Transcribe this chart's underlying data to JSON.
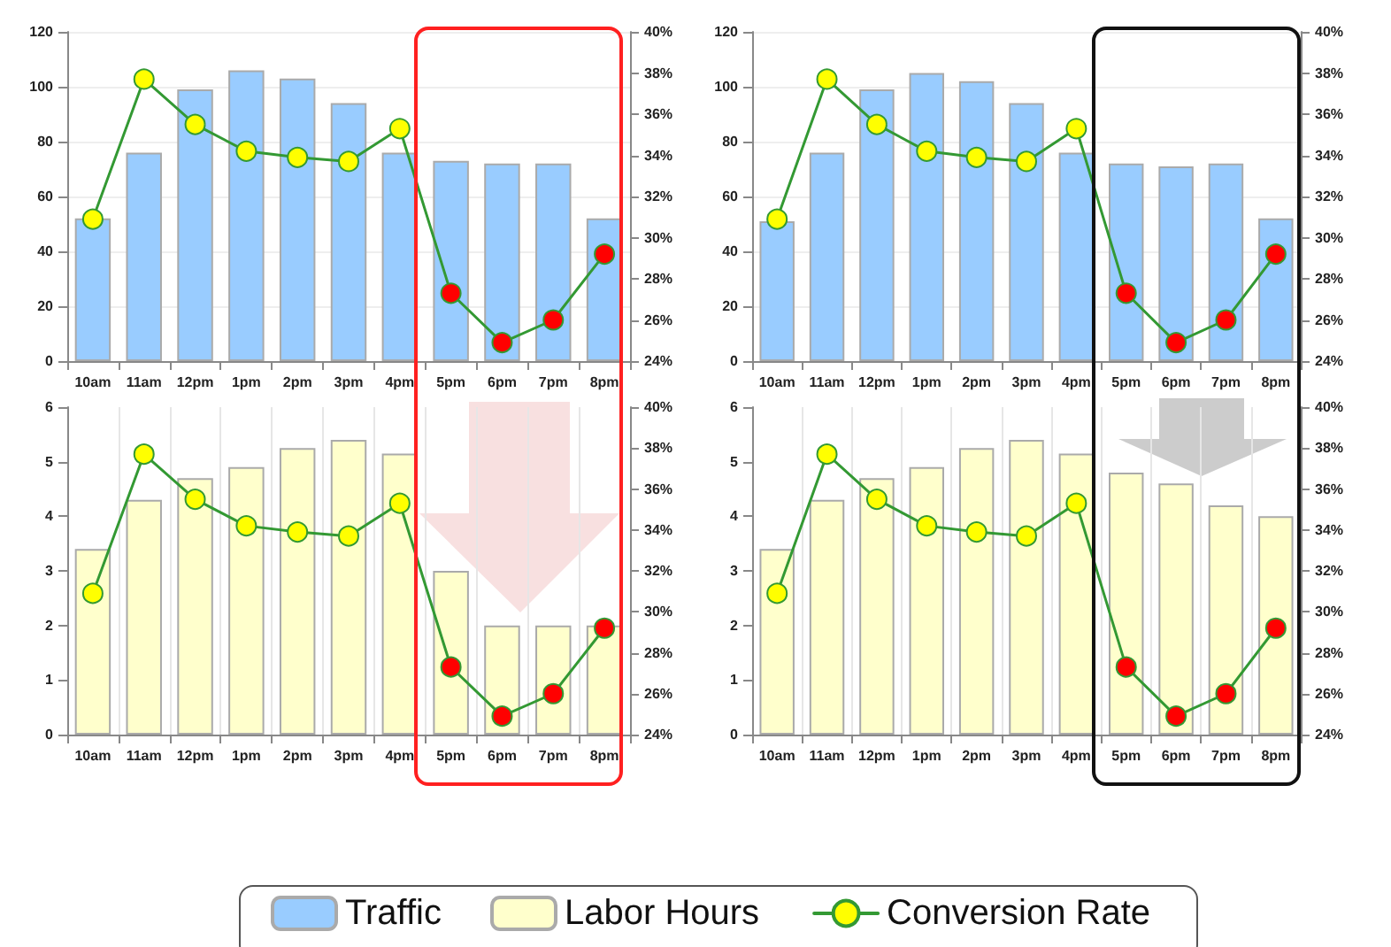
{
  "chart_data": [
    {
      "type": "bar",
      "categories": [
        "10am",
        "11am",
        "12pm",
        "1pm",
        "2pm",
        "3pm",
        "4pm",
        "5pm",
        "6pm",
        "7pm",
        "8pm"
      ],
      "series": [
        {
          "name": "Traffic",
          "color": "#99ccff",
          "values": [
            52,
            76,
            99,
            106,
            103,
            94,
            76,
            73,
            72,
            72,
            52
          ]
        },
        {
          "type": "line",
          "axis": "y2",
          "color": "#339933",
          "colors": [
            "#ffff00",
            "#ffff00",
            "#ffff00",
            "#ffff00",
            "#ffff00",
            "#ffff00",
            "#ffff00",
            "#ff0000",
            "#ff0000",
            "#ff0000",
            "#ff0000"
          ],
          "values": [
            30.9,
            37.7,
            35.5,
            34.2,
            33.9,
            33.7,
            35.3,
            27.3,
            24.9,
            26.0,
            29.2
          ]
        }
      ],
      "ylim": [
        0,
        120
      ],
      "yticks": [
        0,
        20,
        40,
        60,
        80,
        100,
        120
      ],
      "y2lim": [
        24,
        40
      ],
      "y2ticks": [
        {
          "value": 24,
          "label": "24%"
        },
        {
          "value": 26,
          "label": "26%"
        },
        {
          "value": 28,
          "label": "28%"
        },
        {
          "value": 30,
          "label": "30%"
        },
        {
          "value": 32,
          "label": "32%"
        },
        {
          "value": 34,
          "label": "34%"
        },
        {
          "value": 36,
          "label": "36%"
        },
        {
          "value": 38,
          "label": "38%"
        },
        {
          "value": 40,
          "label": "40%"
        }
      ],
      "grid": "y",
      "marker": "circle",
      "line_style": "solid",
      "legend": "bottom"
    },
    {
      "type": "bar",
      "categories": [
        "10am",
        "11am",
        "12pm",
        "1pm",
        "2pm",
        "3pm",
        "4pm",
        "5pm",
        "6pm",
        "7pm",
        "8pm"
      ],
      "series": [
        {
          "color": "#99ccff",
          "values": [
            51,
            76,
            99,
            105,
            102,
            94,
            76,
            72,
            71,
            72,
            52
          ]
        },
        {
          "type": "line",
          "axis": "y2",
          "color": "#339933",
          "colors": [
            "#ffff00",
            "#ffff00",
            "#ffff00",
            "#ffff00",
            "#ffff00",
            "#ffff00",
            "#ffff00",
            "#ff0000",
            "#ff0000",
            "#ff0000",
            "#ff0000"
          ],
          "values": [
            30.9,
            37.7,
            35.5,
            34.2,
            33.9,
            33.7,
            35.3,
            27.3,
            24.9,
            26.0,
            29.2
          ]
        }
      ],
      "ylim": [
        0,
        120
      ],
      "yticks": [
        0,
        20,
        40,
        60,
        80,
        100,
        120
      ],
      "y2lim": [
        24,
        40
      ],
      "y2ticks": [
        {
          "value": 24,
          "label": "24%"
        },
        {
          "value": 26,
          "label": "26%"
        },
        {
          "value": 28,
          "label": "28%"
        },
        {
          "value": 30,
          "label": "30%"
        },
        {
          "value": 32,
          "label": "32%"
        },
        {
          "value": 34,
          "label": "34%"
        },
        {
          "value": 36,
          "label": "36%"
        },
        {
          "value": 38,
          "label": "38%"
        },
        {
          "value": 40,
          "label": "40%"
        }
      ],
      "grid": "y",
      "marker": "circle",
      "line_style": "solid"
    },
    {
      "type": "bar",
      "categories": [
        "10am",
        "11am",
        "12pm",
        "1pm",
        "2pm",
        "3pm",
        "4pm",
        "5pm",
        "6pm",
        "7pm",
        "8pm"
      ],
      "series": [
        {
          "name": "Labor Hours",
          "color": "#ffffcc",
          "values": [
            3.4,
            4.3,
            4.7,
            4.9,
            5.25,
            5.4,
            5.15,
            3.0,
            2.0,
            2.0,
            2.0
          ]
        },
        {
          "type": "line",
          "name": "Conversion Rate",
          "axis": "y2",
          "color": "#339933",
          "colors": [
            "#ffff00",
            "#ffff00",
            "#ffff00",
            "#ffff00",
            "#ffff00",
            "#ffff00",
            "#ffff00",
            "#ff0000",
            "#ff0000",
            "#ff0000",
            "#ff0000"
          ],
          "values": [
            30.9,
            37.7,
            35.5,
            34.2,
            33.9,
            33.7,
            35.3,
            27.3,
            24.9,
            26.0,
            29.2
          ]
        }
      ],
      "ylim": [
        0,
        6
      ],
      "yticks": [
        0,
        1,
        2,
        3,
        4,
        5,
        6
      ],
      "y2lim": [
        24,
        40
      ],
      "y2ticks": [
        {
          "value": 24,
          "label": "24%"
        },
        {
          "value": 26,
          "label": "26%"
        },
        {
          "value": 28,
          "label": "28%"
        },
        {
          "value": 30,
          "label": "30%"
        },
        {
          "value": 32,
          "label": "32%"
        },
        {
          "value": 34,
          "label": "34%"
        },
        {
          "value": 36,
          "label": "36%"
        },
        {
          "value": 38,
          "label": "38%"
        },
        {
          "value": 40,
          "label": "40%"
        }
      ],
      "grid": "x",
      "marker": "circle",
      "line_style": "solid",
      "legend": "bottom"
    },
    {
      "type": "bar",
      "categories": [
        "10am",
        "11am",
        "12pm",
        "1pm",
        "2pm",
        "3pm",
        "4pm",
        "5pm",
        "6pm",
        "7pm",
        "8pm"
      ],
      "series": [
        {
          "color": "#ffffcc",
          "values": [
            3.4,
            4.3,
            4.7,
            4.9,
            5.25,
            5.4,
            5.15,
            4.8,
            4.6,
            4.2,
            4.0
          ]
        },
        {
          "type": "line",
          "axis": "y2",
          "color": "#339933",
          "colors": [
            "#ffff00",
            "#ffff00",
            "#ffff00",
            "#ffff00",
            "#ffff00",
            "#ffff00",
            "#ffff00",
            "#ff0000",
            "#ff0000",
            "#ff0000",
            "#ff0000"
          ],
          "values": [
            30.9,
            37.7,
            35.5,
            34.2,
            33.9,
            33.7,
            35.3,
            27.3,
            24.9,
            26.0,
            29.2
          ]
        }
      ],
      "ylim": [
        0,
        6
      ],
      "yticks": [
        0,
        1,
        2,
        3,
        4,
        5,
        6
      ],
      "y2lim": [
        24,
        40
      ],
      "y2ticks": [
        {
          "value": 24,
          "label": "24%"
        },
        {
          "value": 26,
          "label": "26%"
        },
        {
          "value": 28,
          "label": "28%"
        },
        {
          "value": 30,
          "label": "30%"
        },
        {
          "value": 32,
          "label": "32%"
        },
        {
          "value": 34,
          "label": "34%"
        },
        {
          "value": 36,
          "label": "36%"
        },
        {
          "value": 38,
          "label": "38%"
        },
        {
          "value": 40,
          "label": "40%"
        }
      ],
      "grid": "x",
      "marker": "circle",
      "line_style": "solid"
    }
  ]
}
